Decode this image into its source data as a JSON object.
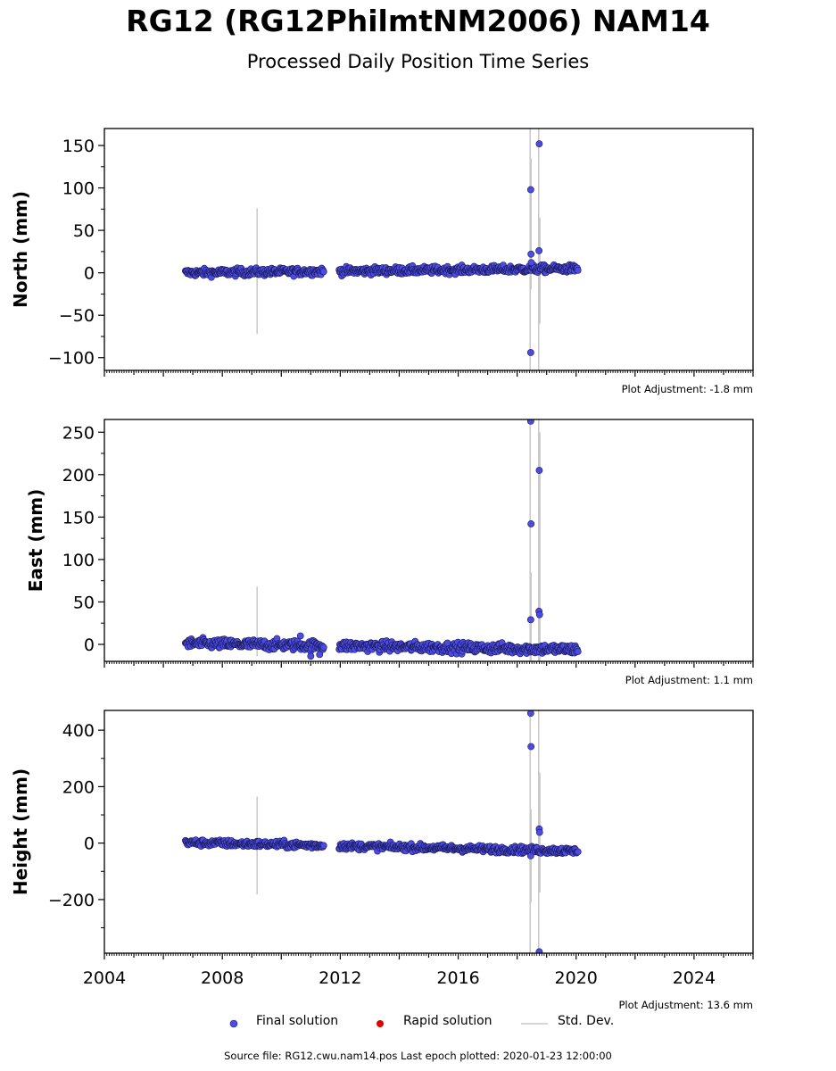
{
  "header": {
    "title": "RG12 (RG12PhilmtNM2006) NAM14",
    "subtitle": "Processed Daily Position Time Series"
  },
  "legend": {
    "final_label": "Final solution",
    "rapid_label": "Rapid solution",
    "std_label": "Std. Dev."
  },
  "footer": {
    "source": "Source file: RG12.cwu.nam14.pos  Last epoch plotted: 2020-01-23 12:00:00"
  },
  "colors": {
    "final": "#4b4be8",
    "rapid": "#e00000",
    "std": "#c8c8c8"
  },
  "chart_data": [
    {
      "type": "scatter",
      "component": "north",
      "ylabel": "North (mm)",
      "adjustment": "Plot Adjustment: -1.8 mm",
      "xlim": [
        2004.0,
        2026.0
      ],
      "ylim": [
        -115,
        170
      ],
      "yticks": [
        -100,
        -50,
        0,
        50,
        100,
        150
      ],
      "ytick_labels": [
        "−100",
        "−50",
        "0",
        "50",
        "100",
        "150"
      ],
      "show_xticklabels": false,
      "baseline": {
        "start": 0.0,
        "end": 5.0,
        "noise": 2.2
      },
      "gap": [
        2011.45,
        2011.95
      ],
      "range": [
        2006.75,
        2020.06
      ],
      "outliers": [
        {
          "x": 2018.46,
          "y": 98
        },
        {
          "x": 2018.46,
          "y": -94
        },
        {
          "x": 2018.47,
          "y": 22
        },
        {
          "x": 2018.48,
          "y": 12
        },
        {
          "x": 2018.75,
          "y": 152
        },
        {
          "x": 2018.74,
          "y": 26
        }
      ],
      "stddev": [
        {
          "x": 2009.18,
          "lo": -72,
          "hi": 76
        },
        {
          "x": 2018.44,
          "lo": -115,
          "hi": 170
        },
        {
          "x": 2018.47,
          "lo": -20,
          "hi": 135
        },
        {
          "x": 2018.73,
          "lo": -115,
          "hi": 170
        },
        {
          "x": 2018.77,
          "lo": -60,
          "hi": 65
        }
      ]
    },
    {
      "type": "scatter",
      "component": "east",
      "ylabel": "East (mm)",
      "adjustment": "Plot Adjustment: 1.1 mm",
      "xlim": [
        2004.0,
        2026.0
      ],
      "ylim": [
        -20,
        265
      ],
      "yticks": [
        0,
        50,
        100,
        150,
        200,
        250
      ],
      "ytick_labels": [
        "0",
        "50",
        "100",
        "150",
        "200",
        "250"
      ],
      "show_xticklabels": false,
      "baseline": {
        "start": 1.0,
        "end": -6.0,
        "noise": 3.0
      },
      "gap": [
        2011.45,
        2011.95
      ],
      "range": [
        2006.75,
        2020.06
      ],
      "outliers": [
        {
          "x": 2018.46,
          "y": 263
        },
        {
          "x": 2018.47,
          "y": 142
        },
        {
          "x": 2018.46,
          "y": 29
        },
        {
          "x": 2018.75,
          "y": 205
        },
        {
          "x": 2018.74,
          "y": 39
        },
        {
          "x": 2018.76,
          "y": 35
        },
        {
          "x": 2010.65,
          "y": 10
        },
        {
          "x": 2011.0,
          "y": -14
        },
        {
          "x": 2011.3,
          "y": -12
        }
      ],
      "stddev": [
        {
          "x": 2009.18,
          "lo": -14,
          "hi": 68
        },
        {
          "x": 2018.44,
          "lo": -20,
          "hi": 265
        },
        {
          "x": 2018.47,
          "lo": -20,
          "hi": 85
        },
        {
          "x": 2018.73,
          "lo": -20,
          "hi": 265
        },
        {
          "x": 2018.77,
          "lo": -20,
          "hi": 250
        }
      ]
    },
    {
      "type": "scatter",
      "component": "height",
      "ylabel": "Height (mm)",
      "adjustment": "Plot Adjustment: 13.6 mm",
      "xlim": [
        2004.0,
        2026.0
      ],
      "ylim": [
        -390,
        470
      ],
      "yticks": [
        -200,
        0,
        200,
        400
      ],
      "ytick_labels": [
        "−200",
        "0",
        "200",
        "400"
      ],
      "show_xticklabels": true,
      "xticks": [
        2004,
        2008,
        2012,
        2016,
        2020,
        2024
      ],
      "xtick_labels": [
        "2004",
        "2008",
        "2012",
        "2016",
        "2020",
        "2024"
      ],
      "baseline": {
        "start": 2.0,
        "end": -28.0,
        "noise": 6.0
      },
      "gap": [
        2011.45,
        2011.95
      ],
      "range": [
        2006.75,
        2020.06
      ],
      "outliers": [
        {
          "x": 2018.46,
          "y": 460
        },
        {
          "x": 2018.47,
          "y": 342
        },
        {
          "x": 2018.46,
          "y": -45
        },
        {
          "x": 2018.75,
          "y": 50
        },
        {
          "x": 2018.76,
          "y": 38
        },
        {
          "x": 2018.75,
          "y": -385
        }
      ],
      "stddev": [
        {
          "x": 2009.18,
          "lo": -182,
          "hi": 165
        },
        {
          "x": 2018.44,
          "lo": -390,
          "hi": 470
        },
        {
          "x": 2018.47,
          "lo": -210,
          "hi": 120
        },
        {
          "x": 2018.73,
          "lo": -390,
          "hi": 470
        },
        {
          "x": 2018.77,
          "lo": -175,
          "hi": 250
        }
      ]
    }
  ]
}
